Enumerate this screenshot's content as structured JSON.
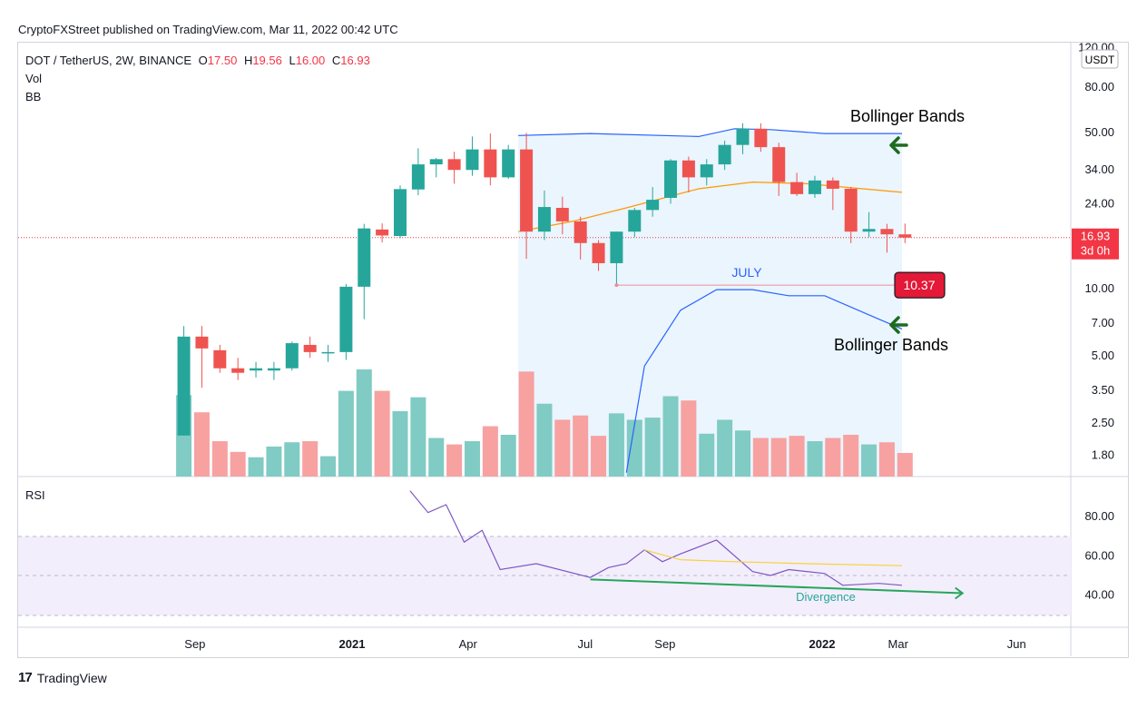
{
  "header": {
    "published": "CryptoFXStreet published on TradingView.com, Mar 11, 2022 00:42 UTC"
  },
  "legend": {
    "symbol": "DOT / TetherUS, 2W, BINANCE",
    "o_label": "O",
    "o_value": "17.50",
    "h_label": "H",
    "h_value": "19.56",
    "l_label": "L",
    "l_value": "16.00",
    "c_label": "C",
    "c_value": "16.93",
    "vol": "Vol",
    "bb": "BB"
  },
  "rsi_pane": {
    "label": "RSI",
    "ticks": [
      "80.00",
      "60.00",
      "40.00"
    ],
    "upper": 70,
    "mid": 50,
    "lower": 30
  },
  "footer": {
    "brand_mark": "17",
    "brand": "TradingView"
  },
  "colors": {
    "up": "#26a69a",
    "down": "#ef5350",
    "vol_up": "#80cbc4",
    "vol_down": "#f7a1a1",
    "bb_band": "#2962ff",
    "bb_basis": "#ff9800",
    "rsi": "#7e57c2",
    "rsi_ma": "#f5d33a",
    "divergence": "#26a65b",
    "last_price_bg": "#f23645",
    "arrow": "#1e6b1e"
  },
  "icons": [
    "green-left-arrow-icon",
    "green-right-arrow-icon",
    "tradingview-logo-icon"
  ],
  "chart_data": {
    "type": "candlestick",
    "title": "DOT / TetherUS, 2W, BINANCE",
    "currency": "USDT",
    "scale": "log",
    "y_ticks": [
      "120.00",
      "80.00",
      "50.00",
      "34.00",
      "24.00",
      "10.00",
      "7.00",
      "5.00",
      "3.50",
      "2.50",
      "1.80"
    ],
    "x_ticks": [
      {
        "label": "Sep",
        "date": "2020-09-01"
      },
      {
        "label": "2021",
        "date": "2021-01-01"
      },
      {
        "label": "Apr",
        "date": "2021-04-01"
      },
      {
        "label": "Jul",
        "date": "2021-07-01"
      },
      {
        "label": "Sep",
        "date": "2021-09-01"
      },
      {
        "label": "2022",
        "date": "2022-01-01"
      },
      {
        "label": "Mar",
        "date": "2022-03-01"
      },
      {
        "label": "Jun",
        "date": "2022-06-01"
      }
    ],
    "candles": [
      {
        "date": "2020-08-17",
        "o": 2.2,
        "h": 6.8,
        "l": 2.2,
        "c": 6.1
      },
      {
        "date": "2020-08-31",
        "o": 6.1,
        "h": 6.8,
        "l": 3.6,
        "c": 5.4
      },
      {
        "date": "2020-09-14",
        "o": 5.3,
        "h": 5.6,
        "l": 4.2,
        "c": 4.4
      },
      {
        "date": "2020-09-28",
        "o": 4.4,
        "h": 4.9,
        "l": 3.9,
        "c": 4.2
      },
      {
        "date": "2020-10-12",
        "o": 4.3,
        "h": 4.7,
        "l": 4.0,
        "c": 4.4
      },
      {
        "date": "2020-10-26",
        "o": 4.3,
        "h": 4.7,
        "l": 3.9,
        "c": 4.4
      },
      {
        "date": "2020-11-09",
        "o": 4.4,
        "h": 5.8,
        "l": 4.3,
        "c": 5.7
      },
      {
        "date": "2020-11-23",
        "o": 5.6,
        "h": 6.1,
        "l": 4.9,
        "c": 5.2
      },
      {
        "date": "2020-12-07",
        "o": 5.2,
        "h": 5.6,
        "l": 4.7,
        "c": 5.2
      },
      {
        "date": "2020-12-21",
        "o": 5.2,
        "h": 10.5,
        "l": 4.8,
        "c": 10.2
      },
      {
        "date": "2021-01-04",
        "o": 10.2,
        "h": 19.5,
        "l": 7.3,
        "c": 18.6
      },
      {
        "date": "2021-01-18",
        "o": 18.4,
        "h": 19.6,
        "l": 16.1,
        "c": 17.3
      },
      {
        "date": "2021-02-01",
        "o": 17.2,
        "h": 29.0,
        "l": 16.8,
        "c": 27.9
      },
      {
        "date": "2021-02-15",
        "o": 27.8,
        "h": 42.5,
        "l": 26.2,
        "c": 36.0
      },
      {
        "date": "2021-03-01",
        "o": 36.0,
        "h": 38.5,
        "l": 31.5,
        "c": 38.0
      },
      {
        "date": "2021-03-15",
        "o": 38.0,
        "h": 41.0,
        "l": 29.5,
        "c": 34.0
      },
      {
        "date": "2021-03-29",
        "o": 34.0,
        "h": 48.0,
        "l": 32.0,
        "c": 42.0
      },
      {
        "date": "2021-04-12",
        "o": 42.0,
        "h": 49.5,
        "l": 29.0,
        "c": 31.5
      },
      {
        "date": "2021-04-26",
        "o": 31.5,
        "h": 44.0,
        "l": 31.0,
        "c": 42.0
      },
      {
        "date": "2021-05-10",
        "o": 42.0,
        "h": 49.8,
        "l": 13.6,
        "c": 18.0
      },
      {
        "date": "2021-05-24",
        "o": 18.0,
        "h": 27.5,
        "l": 16.5,
        "c": 23.2
      },
      {
        "date": "2021-06-07",
        "o": 23.0,
        "h": 25.8,
        "l": 17.5,
        "c": 20.0
      },
      {
        "date": "2021-06-21",
        "o": 20.0,
        "h": 21.0,
        "l": 13.5,
        "c": 16.0
      },
      {
        "date": "2021-07-05",
        "o": 16.0,
        "h": 16.5,
        "l": 12.0,
        "c": 13.0
      },
      {
        "date": "2021-07-19",
        "o": 13.0,
        "h": 18.0,
        "l": 10.37,
        "c": 18.0
      },
      {
        "date": "2021-08-02",
        "o": 18.0,
        "h": 23.0,
        "l": 17.0,
        "c": 22.5
      },
      {
        "date": "2021-08-16",
        "o": 22.5,
        "h": 28.5,
        "l": 21.0,
        "c": 25.0
      },
      {
        "date": "2021-08-30",
        "o": 25.5,
        "h": 38.0,
        "l": 24.0,
        "c": 37.5
      },
      {
        "date": "2021-09-13",
        "o": 37.5,
        "h": 39.0,
        "l": 27.0,
        "c": 31.5
      },
      {
        "date": "2021-09-27",
        "o": 31.5,
        "h": 38.0,
        "l": 29.0,
        "c": 36.0
      },
      {
        "date": "2021-10-11",
        "o": 36.0,
        "h": 46.0,
        "l": 34.0,
        "c": 44.0
      },
      {
        "date": "2021-10-25",
        "o": 44.0,
        "h": 55.0,
        "l": 40.0,
        "c": 52.0
      },
      {
        "date": "2021-11-08",
        "o": 52.0,
        "h": 55.0,
        "l": 41.0,
        "c": 43.0
      },
      {
        "date": "2021-11-22",
        "o": 43.0,
        "h": 45.0,
        "l": 26.0,
        "c": 30.0
      },
      {
        "date": "2021-12-06",
        "o": 30.0,
        "h": 33.0,
        "l": 26.0,
        "c": 26.5
      },
      {
        "date": "2021-12-20",
        "o": 26.5,
        "h": 32.0,
        "l": 25.5,
        "c": 30.5
      },
      {
        "date": "2022-01-03",
        "o": 30.5,
        "h": 31.5,
        "l": 22.5,
        "c": 28.0
      },
      {
        "date": "2022-01-17",
        "o": 28.0,
        "h": 28.5,
        "l": 16.0,
        "c": 18.0
      },
      {
        "date": "2022-01-31",
        "o": 18.0,
        "h": 22.0,
        "l": 17.0,
        "c": 18.5
      },
      {
        "date": "2022-02-14",
        "o": 18.5,
        "h": 19.5,
        "l": 14.5,
        "c": 17.5
      },
      {
        "date": "2022-02-28",
        "o": 17.5,
        "h": 19.56,
        "l": 16.0,
        "c": 16.93
      }
    ],
    "volume_relative": [
      0.76,
      0.6,
      0.33,
      0.23,
      0.18,
      0.28,
      0.32,
      0.33,
      0.19,
      0.8,
      1.0,
      0.8,
      0.61,
      0.74,
      0.36,
      0.3,
      0.33,
      0.47,
      0.39,
      0.98,
      0.68,
      0.53,
      0.57,
      0.38,
      0.59,
      0.53,
      0.55,
      0.75,
      0.71,
      0.4,
      0.53,
      0.43,
      0.36,
      0.36,
      0.38,
      0.33,
      0.36,
      0.39,
      0.3,
      0.32,
      0.22
    ],
    "bollinger": {
      "upper": [
        {
          "date": "2021-05-10",
          "v": 48.5
        },
        {
          "date": "2021-07-05",
          "v": 49.5
        },
        {
          "date": "2021-09-27",
          "v": 48.0
        },
        {
          "date": "2021-10-25",
          "v": 52.0
        },
        {
          "date": "2021-11-22",
          "v": 51.5
        },
        {
          "date": "2022-01-03",
          "v": 49.5
        },
        {
          "date": "2022-03-04",
          "v": 49.5
        }
      ],
      "basis": [
        {
          "date": "2021-05-10",
          "v": 18.0
        },
        {
          "date": "2021-06-21",
          "v": 20.0
        },
        {
          "date": "2021-08-02",
          "v": 23.0
        },
        {
          "date": "2021-09-27",
          "v": 28.0
        },
        {
          "date": "2021-11-08",
          "v": 30.0
        },
        {
          "date": "2021-12-20",
          "v": 29.5
        },
        {
          "date": "2022-03-04",
          "v": 27.0
        }
      ],
      "lower": [
        {
          "date": "2021-08-02",
          "v": 1.5
        },
        {
          "date": "2021-08-16",
          "v": 4.5
        },
        {
          "date": "2021-09-13",
          "v": 8.0
        },
        {
          "date": "2021-10-11",
          "v": 9.9
        },
        {
          "date": "2021-11-08",
          "v": 9.9
        },
        {
          "date": "2021-12-06",
          "v": 9.3
        },
        {
          "date": "2022-01-03",
          "v": 9.3
        },
        {
          "date": "2022-02-14",
          "v": 7.3
        },
        {
          "date": "2022-03-04",
          "v": 6.6
        }
      ]
    },
    "rsi": [
      {
        "date": "2021-02-15",
        "v": 93
      },
      {
        "date": "2021-03-01",
        "v": 82
      },
      {
        "date": "2021-03-15",
        "v": 86
      },
      {
        "date": "2021-03-29",
        "v": 67
      },
      {
        "date": "2021-04-12",
        "v": 73
      },
      {
        "date": "2021-04-26",
        "v": 53
      },
      {
        "date": "2021-05-24",
        "v": 56
      },
      {
        "date": "2021-07-05",
        "v": 49
      },
      {
        "date": "2021-07-19",
        "v": 54
      },
      {
        "date": "2021-08-02",
        "v": 56
      },
      {
        "date": "2021-08-16",
        "v": 63
      },
      {
        "date": "2021-08-30",
        "v": 57
      },
      {
        "date": "2021-09-13",
        "v": 61
      },
      {
        "date": "2021-10-11",
        "v": 68
      },
      {
        "date": "2021-11-08",
        "v": 52
      },
      {
        "date": "2021-11-22",
        "v": 50
      },
      {
        "date": "2021-12-06",
        "v": 53
      },
      {
        "date": "2022-01-03",
        "v": 51
      },
      {
        "date": "2022-01-17",
        "v": 45
      },
      {
        "date": "2022-02-14",
        "v": 46
      },
      {
        "date": "2022-03-04",
        "v": 45
      }
    ],
    "rsi_ma": [
      {
        "date": "2021-08-16",
        "v": 63
      },
      {
        "date": "2021-09-13",
        "v": 58
      },
      {
        "date": "2021-10-25",
        "v": 57
      },
      {
        "date": "2021-12-20",
        "v": 56
      },
      {
        "date": "2022-03-04",
        "v": 55
      }
    ],
    "divergence_line": [
      {
        "date": "2021-07-05",
        "v": 48
      },
      {
        "date": "2022-04-20",
        "v": 41
      }
    ],
    "last_price": {
      "value": "16.93",
      "countdown": "3d 0h"
    },
    "july_low": {
      "value": "10.37",
      "label": "JULY",
      "date": "2021-07-19"
    },
    "annotations": {
      "bollinger_upper": "Bollinger Bands",
      "bollinger_lower": "Bollinger Bands",
      "divergence": "Divergence"
    }
  }
}
